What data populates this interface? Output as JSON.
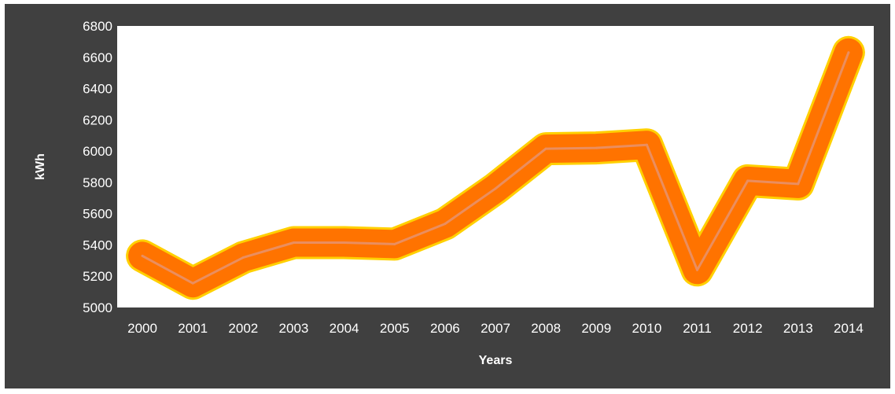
{
  "chart_data": {
    "type": "line",
    "title": "",
    "xlabel": "Years",
    "ylabel": "kWh",
    "categories": [
      "2000",
      "2001",
      "2002",
      "2003",
      "2004",
      "2005",
      "2006",
      "2007",
      "2008",
      "2009",
      "2010",
      "2011",
      "2012",
      "2013",
      "2014"
    ],
    "series": [
      {
        "values": [
          5330,
          5155,
          5320,
          5415,
          5415,
          5405,
          5535,
          5760,
          6015,
          6020,
          6040,
          5240,
          5810,
          5790,
          6630
        ]
      }
    ],
    "ylim": [
      5000,
      6800
    ],
    "yticks": [
      5000,
      5200,
      5400,
      5600,
      5800,
      6000,
      6200,
      6400,
      6600,
      6800
    ],
    "grid": false,
    "legend": "none",
    "colors": {
      "background": "#404040",
      "plot_area": "#ffffff",
      "line_outer": "#ffd000",
      "line_main": "#ff7300",
      "line_center": "#ea8e5f",
      "text": "#ffffff"
    }
  }
}
